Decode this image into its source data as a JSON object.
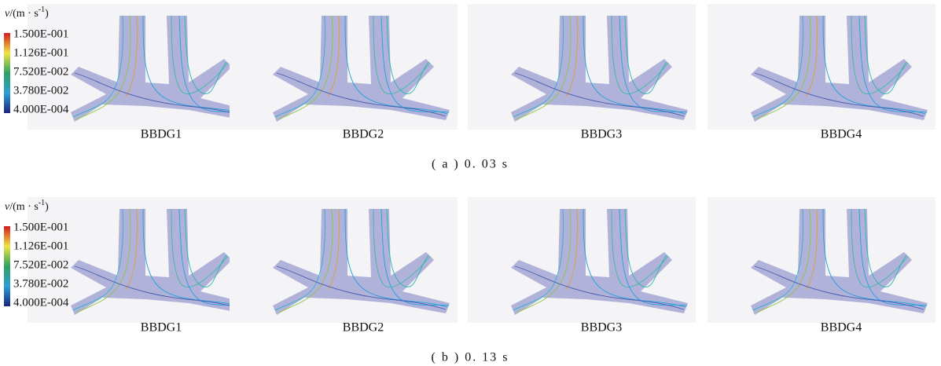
{
  "rows": [
    {
      "legend": {
        "unit": [
          "v",
          "/(m · s",
          "-1",
          ")"
        ],
        "ticks": [
          "1.500E-001",
          "1.126E-001",
          "7.520E-002",
          "3.780E-002",
          "4.000E-004"
        ]
      },
      "panels": [
        "BBDG1",
        "BBDG2",
        "BBDG3",
        "BBDG4"
      ],
      "caption": "( a )  0. 03  s"
    },
    {
      "legend": {
        "unit": [
          "v",
          "/(m · s",
          "-1",
          ")"
        ],
        "ticks": [
          "1.500E-001",
          "1.126E-001",
          "7.520E-002",
          "3.780E-002",
          "4.000E-004"
        ]
      },
      "panels": [
        "BBDG1",
        "BBDG2",
        "BBDG3",
        "BBDG4"
      ],
      "caption": "( b )  0. 13  s"
    }
  ]
}
